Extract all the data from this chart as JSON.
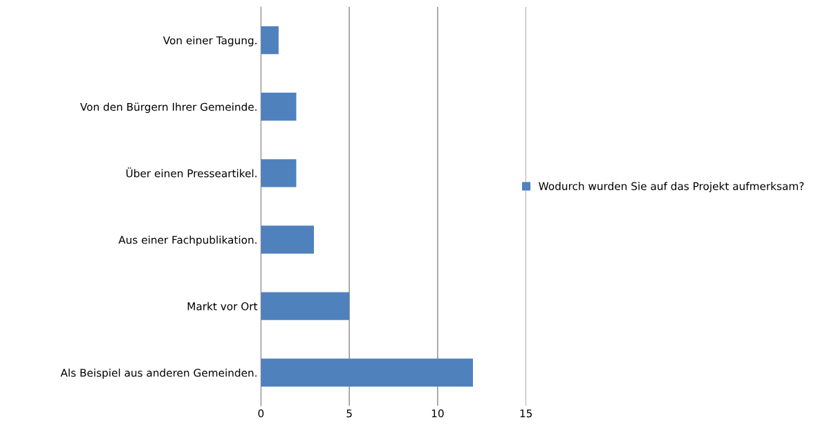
{
  "chart_data": {
    "type": "bar",
    "orientation": "horizontal",
    "categories": [
      "Von einer Tagung.",
      "Von den Bürgern Ihrer Gemeinde.",
      "Über einen Presseartikel.",
      "Aus einer Fachpublikation.",
      "Markt vor Ort",
      "Als Beispiel aus anderen Gemeinden."
    ],
    "series": [
      {
        "name": "Wodurch wurden Sie auf das Projekt aufmerksam?",
        "color": "#4f81bd",
        "values": [
          1,
          2,
          2,
          3,
          5,
          12
        ]
      }
    ],
    "xlim": [
      0,
      15
    ],
    "xticks": [
      0,
      5,
      10,
      15
    ],
    "grid": "x",
    "legend": "right"
  }
}
